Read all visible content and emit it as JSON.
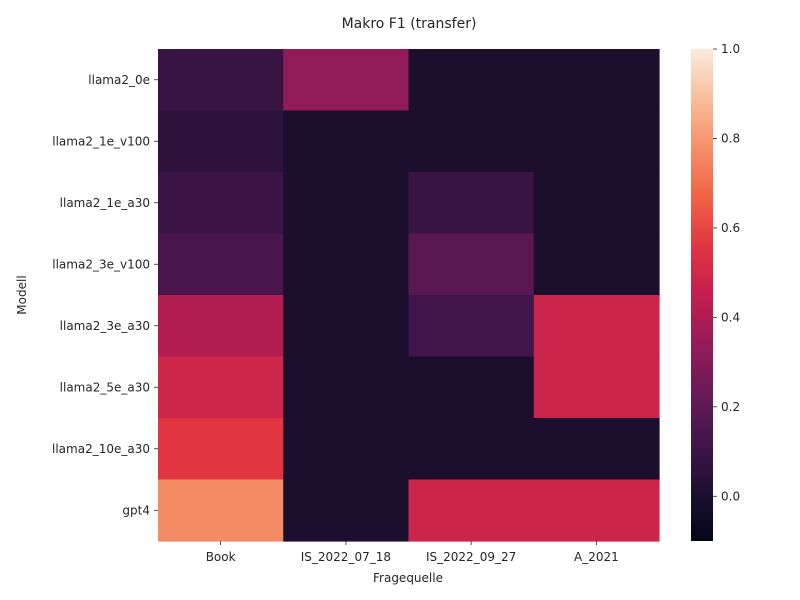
{
  "chart_data": {
    "type": "heatmap",
    "title": "Makro F1 (transfer)",
    "xlabel": "Fragequelle",
    "ylabel": "Modell",
    "columns": [
      "Book",
      "IS_2022_07_18",
      "IS_2022_09_27",
      "A_2021"
    ],
    "rows": [
      "llama2_0e",
      "llama2_1e_v100",
      "llama2_1e_a30",
      "llama2_3e_v100",
      "llama2_3e_a30",
      "llama2_5e_a30",
      "llama2_10e_a30",
      "gpt4"
    ],
    "values": [
      [
        0.09,
        0.33,
        0.0,
        0.0
      ],
      [
        0.06,
        0.0,
        0.0,
        0.0
      ],
      [
        0.1,
        0.0,
        0.09,
        0.0
      ],
      [
        0.14,
        0.0,
        0.19,
        0.0
      ],
      [
        0.41,
        0.0,
        0.12,
        0.48
      ],
      [
        0.49,
        0.0,
        0.0,
        0.48
      ],
      [
        0.56,
        0.0,
        0.0,
        0.0
      ],
      [
        0.77,
        0.0,
        0.48,
        0.48
      ]
    ],
    "colorbar": {
      "min": -0.1,
      "max": 1.0,
      "ticks": [
        "0.0",
        "0.2",
        "0.4",
        "0.6",
        "0.8",
        "1.0"
      ],
      "tick_values": [
        0.0,
        0.2,
        0.4,
        0.6,
        0.8,
        1.0
      ]
    },
    "colormap": "rocket",
    "grid": false
  }
}
